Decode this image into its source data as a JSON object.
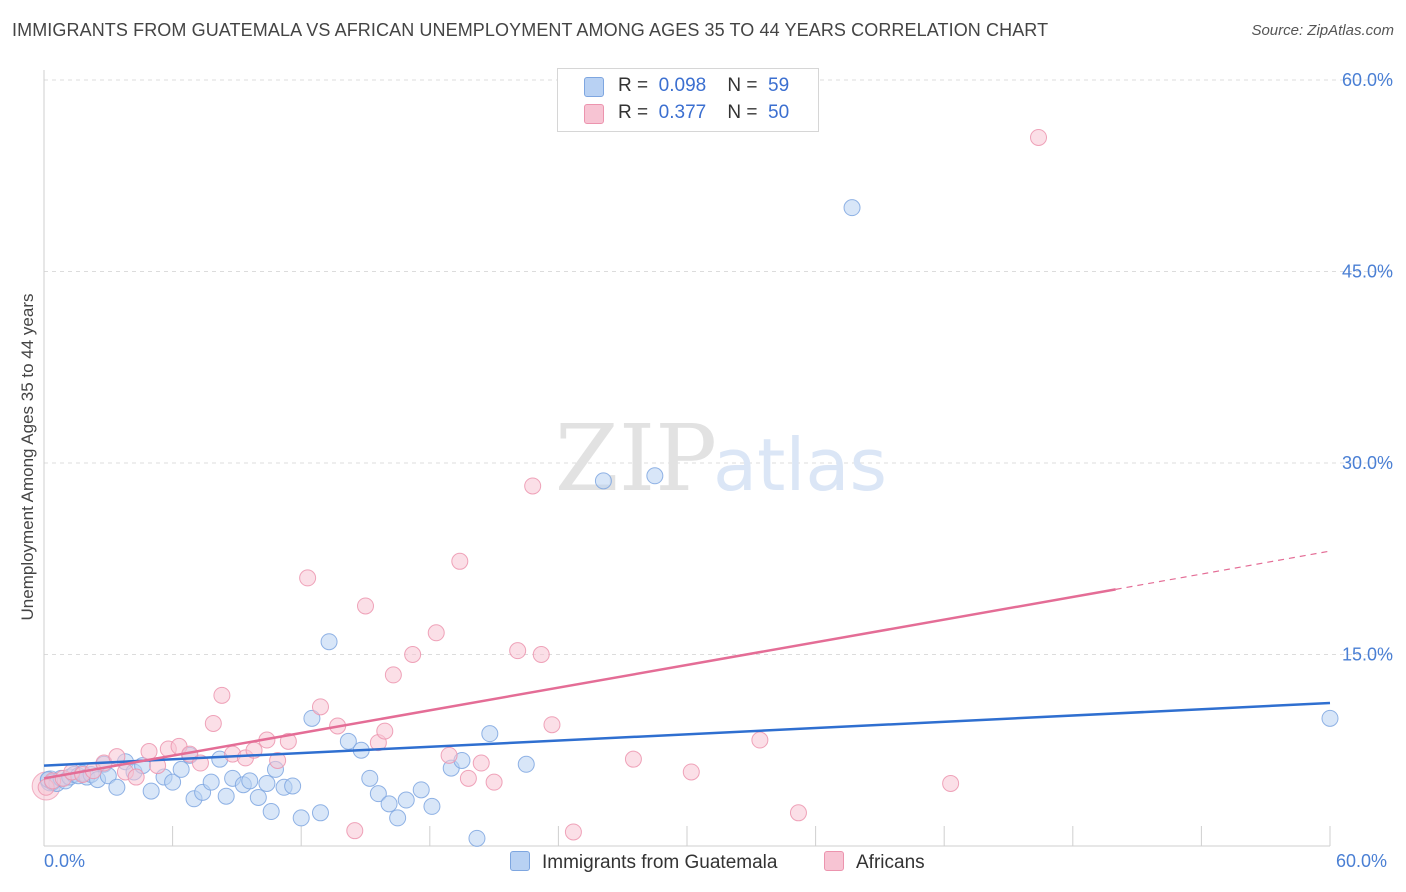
{
  "title": "IMMIGRANTS FROM GUATEMALA VS AFRICAN UNEMPLOYMENT AMONG AGES 35 TO 44 YEARS CORRELATION CHART",
  "source": "Source: ZipAtlas.com",
  "watermark": {
    "zip": "ZIP",
    "atlas": "atlas"
  },
  "colors": {
    "blue_fill": "#b8d1f3",
    "blue_stroke": "#7ea6e0",
    "blue_line": "#2f6fd0",
    "pink_fill": "#f7c4d3",
    "pink_stroke": "#ec94ae",
    "pink_line": "#e46d96",
    "accent_text": "#3b6fd0",
    "grid": "#dcdcdc"
  },
  "legend": {
    "rows": [
      {
        "r_label": "R =",
        "r_value": "0.098",
        "n_label": "N =",
        "n_value": "59"
      },
      {
        "r_label": "R =",
        "r_value": "0.377",
        "n_label": "N =",
        "n_value": "50"
      }
    ]
  },
  "bottom_legend": {
    "series1": "Immigrants from Guatemala",
    "series2": "Africans"
  },
  "chart_data": {
    "type": "scatter",
    "title": "IMMIGRANTS FROM GUATEMALA VS AFRICAN UNEMPLOYMENT AMONG AGES 35 TO 44 YEARS CORRELATION CHART",
    "xlabel": "",
    "ylabel": "Unemployment Among Ages 35 to 44 years",
    "xlim": [
      0,
      60
    ],
    "ylim": [
      0,
      60
    ],
    "x_tick_labels": {
      "min": "0.0%",
      "max": "60.0%"
    },
    "y_ticks": [
      15,
      30,
      45,
      60
    ],
    "y_tick_labels": [
      "15.0%",
      "30.0%",
      "45.0%",
      "60.0%"
    ],
    "grid": true,
    "series": [
      {
        "name": "Immigrants from Guatemala",
        "R": 0.098,
        "N": 59,
        "trend": {
          "x0": 0,
          "y0": 6.3,
          "x1": 60,
          "y1": 11.2
        },
        "points": [
          [
            0.2,
            5.2
          ],
          [
            0.4,
            5.0
          ],
          [
            0.6,
            4.9
          ],
          [
            0.8,
            5.3
          ],
          [
            1.0,
            5.1
          ],
          [
            1.2,
            5.4
          ],
          [
            1.4,
            5.6
          ],
          [
            1.6,
            5.5
          ],
          [
            1.8,
            5.7
          ],
          [
            2.0,
            5.4
          ],
          [
            2.2,
            5.6
          ],
          [
            2.5,
            5.2
          ],
          [
            2.8,
            6.4
          ],
          [
            3.0,
            5.5
          ],
          [
            3.4,
            4.6
          ],
          [
            3.8,
            6.6
          ],
          [
            4.2,
            5.8
          ],
          [
            4.6,
            6.3
          ],
          [
            5.0,
            4.3
          ],
          [
            5.6,
            5.4
          ],
          [
            6.0,
            5.0
          ],
          [
            6.4,
            6.0
          ],
          [
            6.8,
            7.1
          ],
          [
            7.0,
            3.7
          ],
          [
            7.4,
            4.2
          ],
          [
            7.8,
            5.0
          ],
          [
            8.2,
            6.8
          ],
          [
            8.5,
            3.9
          ],
          [
            8.8,
            5.3
          ],
          [
            9.3,
            4.8
          ],
          [
            9.6,
            5.1
          ],
          [
            10.0,
            3.8
          ],
          [
            10.4,
            4.9
          ],
          [
            10.6,
            2.7
          ],
          [
            10.8,
            6.0
          ],
          [
            11.2,
            4.6
          ],
          [
            11.6,
            4.7
          ],
          [
            12.0,
            2.2
          ],
          [
            12.5,
            10.0
          ],
          [
            12.9,
            2.6
          ],
          [
            13.3,
            16.0
          ],
          [
            14.2,
            8.2
          ],
          [
            14.8,
            7.5
          ],
          [
            15.2,
            5.3
          ],
          [
            15.6,
            4.1
          ],
          [
            16.1,
            3.3
          ],
          [
            16.5,
            2.2
          ],
          [
            16.9,
            3.6
          ],
          [
            17.6,
            4.4
          ],
          [
            18.1,
            3.1
          ],
          [
            19.0,
            6.1
          ],
          [
            19.5,
            6.7
          ],
          [
            20.2,
            0.6
          ],
          [
            20.8,
            8.8
          ],
          [
            22.5,
            6.4
          ],
          [
            26.1,
            28.6
          ],
          [
            28.5,
            29.0
          ],
          [
            37.7,
            50.0
          ],
          [
            60.0,
            10.0
          ]
        ]
      },
      {
        "name": "Africans",
        "R": 0.377,
        "N": 50,
        "trend": {
          "x0": 0,
          "y0": 5.3,
          "x1": 50,
          "y1": 20.1,
          "dashed_to_x": 60,
          "dashed_to_y": 23.1
        },
        "points": [
          [
            0.1,
            4.6
          ],
          [
            0.4,
            5.1
          ],
          [
            0.9,
            5.3
          ],
          [
            1.3,
            5.8
          ],
          [
            1.8,
            5.6
          ],
          [
            2.3,
            5.9
          ],
          [
            2.8,
            6.5
          ],
          [
            3.4,
            7.0
          ],
          [
            3.8,
            5.8
          ],
          [
            4.3,
            5.4
          ],
          [
            4.9,
            7.4
          ],
          [
            5.3,
            6.3
          ],
          [
            5.8,
            7.6
          ],
          [
            6.3,
            7.8
          ],
          [
            6.8,
            7.2
          ],
          [
            7.3,
            6.5
          ],
          [
            7.9,
            9.6
          ],
          [
            8.3,
            11.8
          ],
          [
            8.8,
            7.2
          ],
          [
            9.4,
            6.9
          ],
          [
            9.8,
            7.5
          ],
          [
            10.4,
            8.3
          ],
          [
            10.9,
            6.7
          ],
          [
            11.4,
            8.2
          ],
          [
            12.3,
            21.0
          ],
          [
            12.9,
            10.9
          ],
          [
            13.7,
            9.4
          ],
          [
            14.5,
            1.2
          ],
          [
            15.0,
            18.8
          ],
          [
            15.6,
            8.1
          ],
          [
            15.9,
            9.0
          ],
          [
            16.3,
            13.4
          ],
          [
            17.2,
            15.0
          ],
          [
            18.3,
            16.7
          ],
          [
            18.9,
            7.1
          ],
          [
            19.4,
            22.3
          ],
          [
            19.8,
            5.3
          ],
          [
            20.4,
            6.5
          ],
          [
            21.0,
            5.0
          ],
          [
            22.1,
            15.3
          ],
          [
            22.8,
            28.2
          ],
          [
            23.2,
            15.0
          ],
          [
            23.7,
            9.5
          ],
          [
            24.7,
            1.1
          ],
          [
            27.5,
            6.8
          ],
          [
            30.2,
            5.8
          ],
          [
            33.4,
            8.3
          ],
          [
            35.2,
            2.6
          ],
          [
            42.3,
            4.9
          ],
          [
            46.4,
            55.5
          ]
        ]
      }
    ]
  }
}
